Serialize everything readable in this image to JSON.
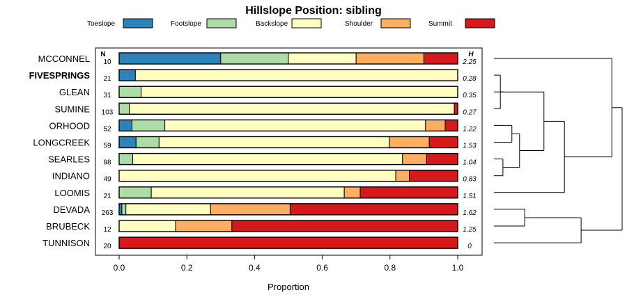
{
  "chart_data": {
    "type": "bar",
    "orientation": "horizontal",
    "stacked": true,
    "title": "Hillslope Position: sibling",
    "xlabel": "Proportion",
    "ylabel": "",
    "xlim": [
      0,
      1
    ],
    "xticks": [
      "0.0",
      "0.2",
      "0.4",
      "0.6",
      "0.8",
      "1.0"
    ],
    "n_header": "N",
    "h_header": "H",
    "categories": [
      "MCCONNEL",
      "FIVESPRINGS",
      "GLEAN",
      "SUMINE",
      "ORHOOD",
      "LONGCREEK",
      "SEARLES",
      "INDIANO",
      "LOOMIS",
      "DEVADA",
      "BRUBECK",
      "TUNNISON"
    ],
    "bold_category": "FIVESPRINGS",
    "n": [
      "10",
      "21",
      "31",
      "103",
      "52",
      "59",
      "98",
      "49",
      "21",
      "263",
      "12",
      "20"
    ],
    "h": [
      "2.25",
      "0.28",
      "0.35",
      "0.27",
      "1.22",
      "1.53",
      "1.04",
      "0.83",
      "1.51",
      "1.62",
      "1.25",
      "0"
    ],
    "series": [
      {
        "name": "Toeslope",
        "color": "#2b83ba",
        "values": [
          0.3,
          0.048,
          0.0,
          0.0,
          0.038,
          0.05,
          0.0,
          0.0,
          0.0,
          0.008,
          0.0,
          0.0
        ]
      },
      {
        "name": "Footslope",
        "color": "#abdda4",
        "values": [
          0.2,
          0.0,
          0.065,
          0.03,
          0.097,
          0.068,
          0.04,
          0.0,
          0.095,
          0.012,
          0.0,
          0.0
        ]
      },
      {
        "name": "Backslope",
        "color": "#ffffbf",
        "values": [
          0.2,
          0.952,
          0.935,
          0.96,
          0.77,
          0.68,
          0.797,
          0.817,
          0.57,
          0.25,
          0.167,
          0.0
        ]
      },
      {
        "name": "Shoulder",
        "color": "#fdae61",
        "values": [
          0.2,
          0.0,
          0.0,
          0.0,
          0.058,
          0.118,
          0.071,
          0.04,
          0.047,
          0.235,
          0.166,
          0.0
        ]
      },
      {
        "name": "Summit",
        "color": "#d7191c",
        "values": [
          0.1,
          0.0,
          0.0,
          0.01,
          0.037,
          0.084,
          0.092,
          0.143,
          0.288,
          0.495,
          0.667,
          1.0
        ]
      }
    ],
    "legend_position": "top",
    "dendrogram": {
      "leaf_order": [
        "MCCONNEL",
        "FIVESPRINGS",
        "GLEAN",
        "SUMINE",
        "ORHOOD",
        "LONGCREEK",
        "SEARLES",
        "INDIANO",
        "LOOMIS",
        "DEVADA",
        "BRUBECK",
        "TUNNISON"
      ],
      "merges": [
        [
          "FIVESPRINGS",
          "SUMINE",
          0.05
        ],
        [
          "m0",
          "GLEAN",
          0.08
        ],
        [
          "ORHOOD",
          "LONGCREEK",
          0.14
        ],
        [
          "SEARLES",
          "INDIANO",
          0.07
        ],
        [
          "m2",
          "m3",
          0.2
        ],
        [
          "m1",
          "m4",
          0.39
        ],
        [
          "m5",
          "LOOMIS",
          0.55
        ],
        [
          "DEVADA",
          "BRUBECK",
          0.24
        ],
        [
          "m7",
          "TUNNISON",
          0.68
        ],
        [
          "MCCONNEL",
          "m6",
          0.92
        ],
        [
          "m9",
          "m8",
          1.0
        ]
      ]
    }
  }
}
